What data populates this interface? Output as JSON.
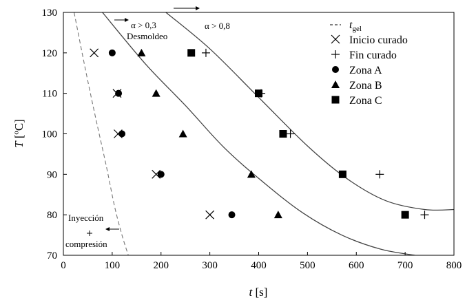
{
  "chart_data": {
    "type": "scatter",
    "xlabel": "t [s]",
    "ylabel": "T [ºC]",
    "xlim": [
      0,
      800
    ],
    "ylim": [
      70,
      130
    ],
    "xticks": [
      0,
      100,
      200,
      300,
      400,
      500,
      600,
      700,
      800
    ],
    "yticks": [
      70,
      80,
      90,
      100,
      110,
      120,
      130
    ],
    "grid": false,
    "legend_position": "top-right",
    "legend": [
      {
        "label": "t",
        "sub": "gel",
        "marker": "dashed-line"
      },
      {
        "label": "Inicio curado",
        "marker": "x"
      },
      {
        "label": "Fin curado",
        "marker": "plus"
      },
      {
        "label": "Zona A",
        "marker": "circle"
      },
      {
        "label": "Zona B",
        "marker": "triangle"
      },
      {
        "label": "Zona C",
        "marker": "square"
      }
    ],
    "series": [
      {
        "name": "Inicio curado",
        "marker": "x",
        "points": [
          [
            63,
            120
          ],
          [
            110,
            110
          ],
          [
            112,
            100
          ],
          [
            190,
            90
          ],
          [
            300,
            80
          ]
        ]
      },
      {
        "name": "Fin curado",
        "marker": "plus",
        "points": [
          [
            292,
            120
          ],
          [
            405,
            110
          ],
          [
            465,
            100
          ],
          [
            648,
            90
          ],
          [
            740,
            80
          ]
        ]
      },
      {
        "name": "Zona A",
        "marker": "circle",
        "points": [
          [
            100,
            120
          ],
          [
            113,
            110
          ],
          [
            120,
            100
          ],
          [
            200,
            90
          ],
          [
            345,
            80
          ]
        ]
      },
      {
        "name": "Zona B",
        "marker": "triangle",
        "points": [
          [
            160,
            120
          ],
          [
            190,
            110
          ],
          [
            245,
            100
          ],
          [
            385,
            90
          ],
          [
            440,
            80
          ]
        ]
      },
      {
        "name": "Zona C",
        "marker": "square",
        "points": [
          [
            262,
            120
          ],
          [
            400,
            110
          ],
          [
            450,
            100
          ],
          [
            572,
            90
          ],
          [
            700,
            80
          ]
        ]
      }
    ],
    "curves": [
      {
        "id": "tgel",
        "style": "dashed",
        "points": [
          [
            22,
            130
          ],
          [
            45,
            116
          ],
          [
            66,
            104
          ],
          [
            88,
            92
          ],
          [
            105,
            82
          ],
          [
            120,
            75
          ],
          [
            133,
            70
          ]
        ]
      },
      {
        "id": "alpha-0.3",
        "style": "solid",
        "points": [
          [
            80,
            130
          ],
          [
            170,
            117
          ],
          [
            250,
            107
          ],
          [
            330,
            96.5
          ],
          [
            410,
            88
          ],
          [
            490,
            80.5
          ],
          [
            570,
            75
          ],
          [
            650,
            71.5
          ],
          [
            720,
            70
          ]
        ]
      },
      {
        "id": "alpha-0.8",
        "style": "solid",
        "points": [
          [
            210,
            130
          ],
          [
            300,
            121
          ],
          [
            400,
            109
          ],
          [
            500,
            97
          ],
          [
            580,
            89
          ],
          [
            660,
            83.5
          ],
          [
            740,
            81.3
          ],
          [
            800,
            81.3
          ]
        ]
      }
    ],
    "annotations": {
      "alpha_low": "α > 0,3",
      "desmoldeo": "Desmoldeo",
      "alpha_high": "α > 0,8",
      "inyeccion": "Inyección",
      "compresion": "compresión"
    }
  }
}
